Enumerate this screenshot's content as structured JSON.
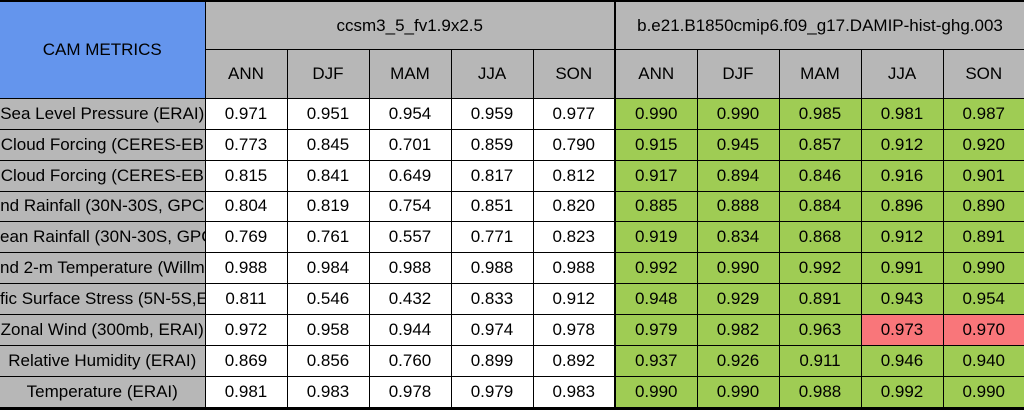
{
  "title": "CAM METRICS",
  "colors": {
    "header_blue": "#6495ed",
    "header_gray": "#b7b7b7",
    "cell_white": "#ffffff",
    "cell_green": "#9fcc54",
    "cell_red": "#f9767a",
    "border": "#000000"
  },
  "chart_data": {
    "type": "table",
    "title": "CAM METRICS",
    "column_groups": [
      {
        "name": "ccsm3_5_fv1.9x2.5",
        "seasons": [
          "ANN",
          "DJF",
          "MAM",
          "JJA",
          "SON"
        ]
      },
      {
        "name": "b.e21.B1850cmip6.f09_g17.DAMIP-hist-ghg.003",
        "seasons": [
          "ANN",
          "DJF",
          "MAM",
          "JJA",
          "SON"
        ]
      }
    ],
    "rows": [
      {
        "label": "Sea Level Pressure (ERAI)",
        "left_values": [
          "0.971",
          "0.951",
          "0.954",
          "0.959",
          "0.977"
        ],
        "right_values": [
          "0.990",
          "0.990",
          "0.985",
          "0.981",
          "0.987"
        ],
        "right_cell_colors": [
          "green",
          "green",
          "green",
          "green",
          "green"
        ]
      },
      {
        "label": "Cloud Forcing (CERES-EB",
        "left_values": [
          "0.773",
          "0.845",
          "0.701",
          "0.859",
          "0.790"
        ],
        "right_values": [
          "0.915",
          "0.945",
          "0.857",
          "0.912",
          "0.920"
        ],
        "right_cell_colors": [
          "green",
          "green",
          "green",
          "green",
          "green"
        ]
      },
      {
        "label": "Cloud Forcing (CERES-EB",
        "left_values": [
          "0.815",
          "0.841",
          "0.649",
          "0.817",
          "0.812"
        ],
        "right_values": [
          "0.917",
          "0.894",
          "0.846",
          "0.916",
          "0.901"
        ],
        "right_cell_colors": [
          "green",
          "green",
          "green",
          "green",
          "green"
        ]
      },
      {
        "label": "nd Rainfall (30N-30S, GPC",
        "left_values": [
          "0.804",
          "0.819",
          "0.754",
          "0.851",
          "0.820"
        ],
        "right_values": [
          "0.885",
          "0.888",
          "0.884",
          "0.896",
          "0.890"
        ],
        "right_cell_colors": [
          "green",
          "green",
          "green",
          "green",
          "green"
        ]
      },
      {
        "label": "ean Rainfall (30N-30S, GPC",
        "left_values": [
          "0.769",
          "0.761",
          "0.557",
          "0.771",
          "0.823"
        ],
        "right_values": [
          "0.919",
          "0.834",
          "0.868",
          "0.912",
          "0.891"
        ],
        "right_cell_colors": [
          "green",
          "green",
          "green",
          "green",
          "green"
        ]
      },
      {
        "label": "nd 2-m Temperature (Willm",
        "left_values": [
          "0.988",
          "0.984",
          "0.988",
          "0.988",
          "0.988"
        ],
        "right_values": [
          "0.992",
          "0.990",
          "0.992",
          "0.991",
          "0.990"
        ],
        "right_cell_colors": [
          "green",
          "green",
          "green",
          "green",
          "green"
        ]
      },
      {
        "label": "fic Surface Stress (5N-5S,E",
        "left_values": [
          "0.811",
          "0.546",
          "0.432",
          "0.833",
          "0.912"
        ],
        "right_values": [
          "0.948",
          "0.929",
          "0.891",
          "0.943",
          "0.954"
        ],
        "right_cell_colors": [
          "green",
          "green",
          "green",
          "green",
          "green"
        ]
      },
      {
        "label": "Zonal Wind (300mb, ERAI)",
        "left_values": [
          "0.972",
          "0.958",
          "0.944",
          "0.974",
          "0.978"
        ],
        "right_values": [
          "0.979",
          "0.982",
          "0.963",
          "0.973",
          "0.970"
        ],
        "right_cell_colors": [
          "green",
          "green",
          "green",
          "red",
          "red"
        ]
      },
      {
        "label": "Relative Humidity (ERAI)",
        "left_values": [
          "0.869",
          "0.856",
          "0.760",
          "0.899",
          "0.892"
        ],
        "right_values": [
          "0.937",
          "0.926",
          "0.911",
          "0.946",
          "0.940"
        ],
        "right_cell_colors": [
          "green",
          "green",
          "green",
          "green",
          "green"
        ]
      },
      {
        "label": "Temperature (ERAI)",
        "left_values": [
          "0.981",
          "0.983",
          "0.978",
          "0.979",
          "0.983"
        ],
        "right_values": [
          "0.990",
          "0.990",
          "0.988",
          "0.992",
          "0.990"
        ],
        "right_cell_colors": [
          "green",
          "green",
          "green",
          "green",
          "green"
        ]
      }
    ]
  }
}
